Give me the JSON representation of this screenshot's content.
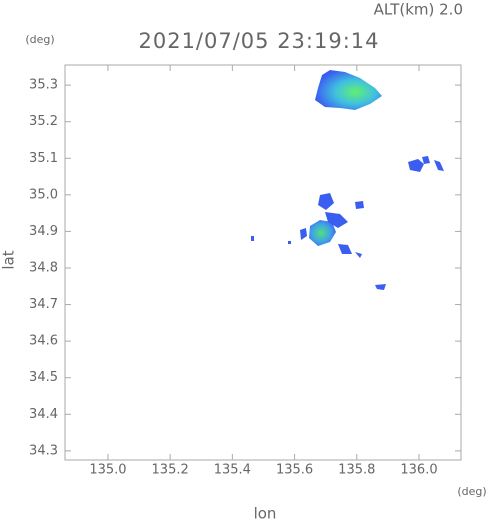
{
  "chart_data": {
    "type": "radar-map",
    "title": "2021/07/05 23:19:14",
    "subtitle": "ALT(km) 2.0",
    "xlabel": "lon",
    "ylabel": "lat",
    "x_unit": "(deg)",
    "y_unit": "(deg)",
    "xlim": [
      134.862,
      136.135
    ],
    "ylim": [
      34.275,
      35.355
    ],
    "xticks": [
      {
        "value": 135,
        "label": "135.0"
      },
      135.2,
      135.4,
      135.6,
      135.8,
      {
        "value": 136,
        "label": "136.0"
      }
    ],
    "yticks": [
      34.3,
      34.4,
      34.5,
      34.6,
      34.7,
      34.8,
      34.9,
      {
        "value": 35,
        "label": "35.0"
      },
      35.1,
      35.2,
      35.3
    ]
  }
}
